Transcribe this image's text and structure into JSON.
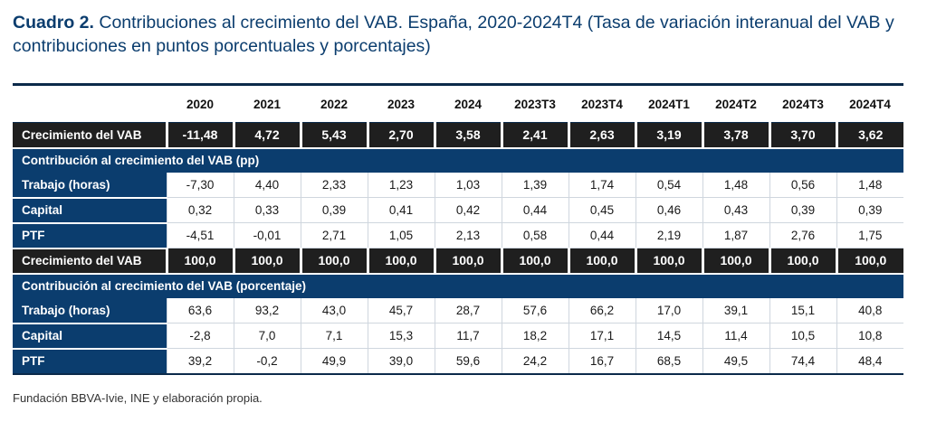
{
  "title": {
    "label": "Cuadro 2.",
    "text": " Contribuciones al crecimiento del VAB. España, 2020-2024T4 (Tasa de variación interanual del VAB y contribuciones en puntos porcentuales y porcentajes)"
  },
  "table": {
    "columns": [
      "2020",
      "2021",
      "2022",
      "2023",
      "2024",
      "2023T3",
      "2023T4",
      "2024T1",
      "2024T2",
      "2024T3",
      "2024T4"
    ],
    "growth1": {
      "label": "Crecimiento del VAB",
      "values": [
        "-11,48",
        "4,72",
        "5,43",
        "2,70",
        "3,58",
        "2,41",
        "2,63",
        "3,19",
        "3,78",
        "3,70",
        "3,62"
      ]
    },
    "section1": {
      "label": "Contribución al crecimiento del VAB (pp)",
      "rows": [
        {
          "label": "Trabajo (horas)",
          "values": [
            "-7,30",
            "4,40",
            "2,33",
            "1,23",
            "1,03",
            "1,39",
            "1,74",
            "0,54",
            "1,48",
            "0,56",
            "1,48"
          ]
        },
        {
          "label": "Capital",
          "values": [
            "0,32",
            "0,33",
            "0,39",
            "0,41",
            "0,42",
            "0,44",
            "0,45",
            "0,46",
            "0,43",
            "0,39",
            "0,39"
          ]
        },
        {
          "label": "PTF",
          "values": [
            "-4,51",
            "-0,01",
            "2,71",
            "1,05",
            "2,13",
            "0,58",
            "0,44",
            "2,19",
            "1,87",
            "2,76",
            "1,75"
          ]
        }
      ]
    },
    "growth2": {
      "label": "Crecimiento del VAB",
      "values": [
        "100,0",
        "100,0",
        "100,0",
        "100,0",
        "100,0",
        "100,0",
        "100,0",
        "100,0",
        "100,0",
        "100,0",
        "100,0"
      ]
    },
    "section2": {
      "label": "Contribución al crecimiento del VAB (porcentaje)",
      "rows": [
        {
          "label": "Trabajo (horas)",
          "values": [
            "63,6",
            "93,2",
            "43,0",
            "45,7",
            "28,7",
            "57,6",
            "66,2",
            "17,0",
            "39,1",
            "15,1",
            "40,8"
          ]
        },
        {
          "label": "Capital",
          "values": [
            "-2,8",
            "7,0",
            "7,1",
            "15,3",
            "11,7",
            "18,2",
            "17,1",
            "14,5",
            "11,4",
            "10,5",
            "10,8"
          ]
        },
        {
          "label": "PTF",
          "values": [
            "39,2",
            "-0,2",
            "49,9",
            "39,0",
            "59,6",
            "24,2",
            "16,7",
            "68,5",
            "49,5",
            "74,4",
            "48,4"
          ]
        }
      ]
    }
  },
  "source": "Fundación BBVA-Ivie, INE y elaboración propia."
}
